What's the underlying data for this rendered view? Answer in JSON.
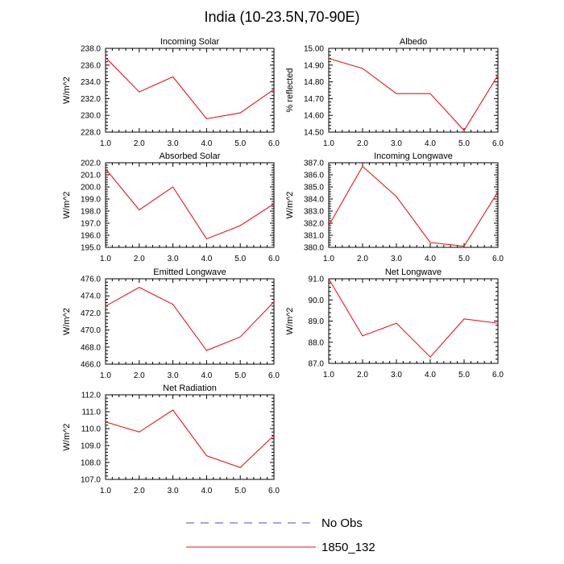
{
  "figure_title": "India (10-23.5N,70-90E)",
  "legend": [
    {
      "label": "No Obs",
      "color": "#5050b0",
      "dash": true
    },
    {
      "label": "1850_132",
      "color": "#e8141e",
      "dash": false
    }
  ],
  "chart_data": [
    {
      "type": "line",
      "title": "Incoming Solar",
      "ylabel": "W/m^2",
      "x": [
        1,
        2,
        3,
        4,
        5,
        6
      ],
      "xlim": [
        1,
        6
      ],
      "xticks": [
        "1.0",
        "2.0",
        "3.0",
        "4.0",
        "5.0",
        "6.0"
      ],
      "ylim": [
        228,
        238
      ],
      "yticks": [
        "228.0",
        "230.0",
        "232.0",
        "234.0",
        "236.0",
        "238.0"
      ],
      "series": [
        {
          "color": "#e8141e",
          "values": [
            236.9,
            232.8,
            234.6,
            229.6,
            230.3,
            233.1
          ]
        }
      ]
    },
    {
      "type": "line",
      "title": "Albedo",
      "ylabel": "% reflected",
      "x": [
        1,
        2,
        3,
        4,
        5,
        6
      ],
      "xlim": [
        1,
        6
      ],
      "xticks": [
        "1.0",
        "2.0",
        "3.0",
        "4.0",
        "5.0",
        "6.0"
      ],
      "ylim": [
        14.5,
        15.0
      ],
      "yticks": [
        "14.50",
        "14.60",
        "14.70",
        "14.80",
        "14.90",
        "15.00"
      ],
      "series": [
        {
          "color": "#e8141e",
          "values": [
            14.94,
            14.88,
            14.73,
            14.73,
            14.51,
            14.84
          ]
        }
      ]
    },
    {
      "type": "line",
      "title": "Absorbed Solar",
      "ylabel": "W/m^2",
      "x": [
        1,
        2,
        3,
        4,
        5,
        6
      ],
      "xlim": [
        1,
        6
      ],
      "xticks": [
        "1.0",
        "2.0",
        "3.0",
        "4.0",
        "5.0",
        "6.0"
      ],
      "ylim": [
        195,
        202
      ],
      "yticks": [
        "195.0",
        "196.0",
        "197.0",
        "198.0",
        "199.0",
        "200.0",
        "201.0",
        "202.0"
      ],
      "series": [
        {
          "color": "#e8141e",
          "values": [
            201.5,
            198.1,
            200.0,
            195.7,
            196.8,
            198.6
          ]
        }
      ]
    },
    {
      "type": "line",
      "title": "Incoming Longwave",
      "ylabel": "W/m^2",
      "x": [
        1,
        2,
        3,
        4,
        5,
        6
      ],
      "xlim": [
        1,
        6
      ],
      "xticks": [
        "1.0",
        "2.0",
        "3.0",
        "4.0",
        "5.0",
        "6.0"
      ],
      "ylim": [
        380,
        387
      ],
      "yticks": [
        "380.0",
        "381.0",
        "382.0",
        "383.0",
        "384.0",
        "385.0",
        "386.0",
        "387.0"
      ],
      "series": [
        {
          "color": "#e8141e",
          "values": [
            381.8,
            386.7,
            384.2,
            380.4,
            380.1,
            384.6
          ]
        }
      ]
    },
    {
      "type": "line",
      "title": "Emitted Longwave",
      "ylabel": "W/m^2",
      "x": [
        1,
        2,
        3,
        4,
        5,
        6
      ],
      "xlim": [
        1,
        6
      ],
      "xticks": [
        "1.0",
        "2.0",
        "3.0",
        "4.0",
        "5.0",
        "6.0"
      ],
      "ylim": [
        466,
        476
      ],
      "yticks": [
        "466.0",
        "468.0",
        "470.0",
        "472.0",
        "474.0",
        "476.0"
      ],
      "series": [
        {
          "color": "#e8141e",
          "values": [
            472.8,
            475.0,
            473.0,
            467.6,
            469.2,
            473.3
          ]
        }
      ]
    },
    {
      "type": "line",
      "title": "Net Longwave",
      "ylabel": "W/m^2",
      "x": [
        1,
        2,
        3,
        4,
        5,
        6
      ],
      "xlim": [
        1,
        6
      ],
      "xticks": [
        "1.0",
        "2.0",
        "3.0",
        "4.0",
        "5.0",
        "6.0"
      ],
      "ylim": [
        87,
        91
      ],
      "yticks": [
        "87.0",
        "88.0",
        "89.0",
        "90.0",
        "91.0"
      ],
      "series": [
        {
          "color": "#e8141e",
          "values": [
            91.0,
            88.3,
            88.9,
            87.3,
            89.1,
            88.9
          ]
        }
      ]
    },
    {
      "type": "line",
      "title": "Net Radiation",
      "ylabel": "W/m^2",
      "x": [
        1,
        2,
        3,
        4,
        5,
        6
      ],
      "xlim": [
        1,
        6
      ],
      "xticks": [
        "1.0",
        "2.0",
        "3.0",
        "4.0",
        "5.0",
        "6.0"
      ],
      "ylim": [
        107,
        112
      ],
      "yticks": [
        "107.0",
        "108.0",
        "109.0",
        "110.0",
        "111.0",
        "112.0"
      ],
      "series": [
        {
          "color": "#e8141e",
          "values": [
            110.4,
            109.8,
            111.1,
            108.4,
            107.7,
            109.6
          ]
        }
      ]
    }
  ]
}
